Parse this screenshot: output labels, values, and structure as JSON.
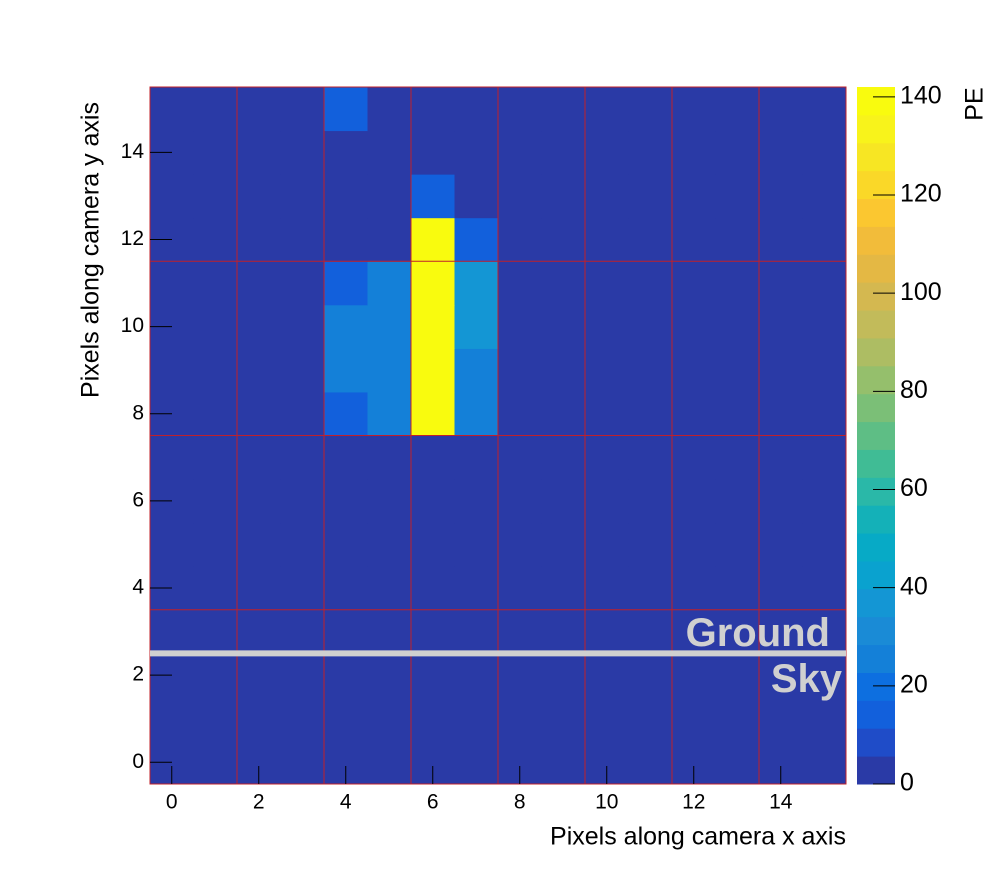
{
  "chart_data": {
    "type": "heatmap",
    "xlabel": "Pixels along camera x axis",
    "ylabel": "Pixels along camera y axis",
    "zlabel": "PE",
    "x": [
      0,
      1,
      2,
      3,
      4,
      5,
      6,
      7,
      8,
      9,
      10,
      11,
      12,
      13,
      14,
      15
    ],
    "y": [
      0,
      1,
      2,
      3,
      4,
      5,
      6,
      7,
      8,
      9,
      10,
      11,
      12,
      13,
      14,
      15
    ],
    "z": [
      [
        0,
        0,
        0,
        0,
        0,
        0,
        0,
        0,
        0,
        0,
        0,
        0,
        0,
        0,
        0,
        0
      ],
      [
        0,
        0,
        0,
        0,
        0,
        0,
        0,
        0,
        0,
        0,
        0,
        0,
        0,
        0,
        0,
        0
      ],
      [
        0,
        0,
        0,
        0,
        0,
        0,
        0,
        0,
        0,
        0,
        0,
        0,
        0,
        0,
        0,
        0
      ],
      [
        0,
        0,
        0,
        0,
        0,
        0,
        0,
        0,
        0,
        0,
        0,
        0,
        0,
        0,
        0,
        0
      ],
      [
        0,
        0,
        0,
        0,
        0,
        0,
        0,
        0,
        0,
        0,
        0,
        0,
        0,
        0,
        0,
        0
      ],
      [
        0,
        0,
        0,
        0,
        0,
        0,
        0,
        0,
        0,
        0,
        0,
        0,
        0,
        0,
        0,
        0
      ],
      [
        0,
        0,
        0,
        0,
        0,
        0,
        0,
        0,
        0,
        0,
        0,
        0,
        0,
        0,
        0,
        0
      ],
      [
        0,
        0,
        0,
        0,
        0,
        0,
        0,
        0,
        0,
        0,
        0,
        0,
        0,
        0,
        0,
        0
      ],
      [
        0,
        0,
        0,
        0,
        15,
        25,
        140,
        25,
        0,
        0,
        0,
        0,
        0,
        0,
        0,
        0
      ],
      [
        0,
        0,
        0,
        0,
        28,
        28,
        140,
        25,
        0,
        0,
        0,
        0,
        0,
        0,
        0,
        0
      ],
      [
        0,
        0,
        0,
        0,
        28,
        28,
        140,
        35,
        0,
        0,
        0,
        0,
        0,
        0,
        0,
        0
      ],
      [
        0,
        0,
        0,
        0,
        15,
        25,
        140,
        35,
        0,
        0,
        0,
        0,
        0,
        0,
        0,
        0
      ],
      [
        0,
        0,
        0,
        0,
        0,
        0,
        140,
        12,
        0,
        0,
        0,
        0,
        0,
        0,
        0,
        0
      ],
      [
        0,
        0,
        0,
        0,
        0,
        0,
        12,
        0,
        0,
        0,
        0,
        0,
        0,
        0,
        0,
        0
      ],
      [
        0,
        0,
        0,
        0,
        0,
        0,
        0,
        0,
        0,
        0,
        0,
        0,
        0,
        0,
        0,
        0
      ],
      [
        0,
        0,
        0,
        0,
        12,
        0,
        0,
        0,
        0,
        0,
        0,
        0,
        0,
        0,
        0,
        0
      ]
    ],
    "xlim": [
      -0.5,
      15.5
    ],
    "ylim": [
      -0.5,
      15.5
    ],
    "zlim": [
      0,
      142
    ],
    "xticks": [
      0,
      2,
      4,
      6,
      8,
      10,
      12,
      14
    ],
    "yticks": [
      0,
      2,
      4,
      6,
      8,
      10,
      12,
      14
    ],
    "zticks": [
      0,
      20,
      40,
      60,
      80,
      100,
      120,
      140
    ],
    "colorscale": [
      "#2a3aa6",
      "#1f4cc8",
      "#1260dc",
      "#0d6fe0",
      "#1480d8",
      "#1a8bd6",
      "#1496d4",
      "#0aa2cf",
      "#07aac6",
      "#14b1b8",
      "#2ab8a8",
      "#40bc95",
      "#5ebe85",
      "#7bbf77",
      "#95bf6c",
      "#adbd63",
      "#c2bb5a",
      "#d4b850",
      "#e4b844",
      "#f2bc3a",
      "#fbc730",
      "#fad828",
      "#f7e623",
      "#f8f31b",
      "#f9fb0e"
    ],
    "module_boundaries_x": [
      1.5,
      3.5,
      5.5,
      7.5,
      9.5,
      11.5,
      13.5
    ],
    "module_boundaries_y": [
      3.5,
      7.5,
      11.5
    ],
    "boundary_color": "#c0202a",
    "horizon_y": 2.5,
    "horizon_color": "#d0d0d0",
    "annotations": [
      "Ground",
      "Sky"
    ]
  }
}
